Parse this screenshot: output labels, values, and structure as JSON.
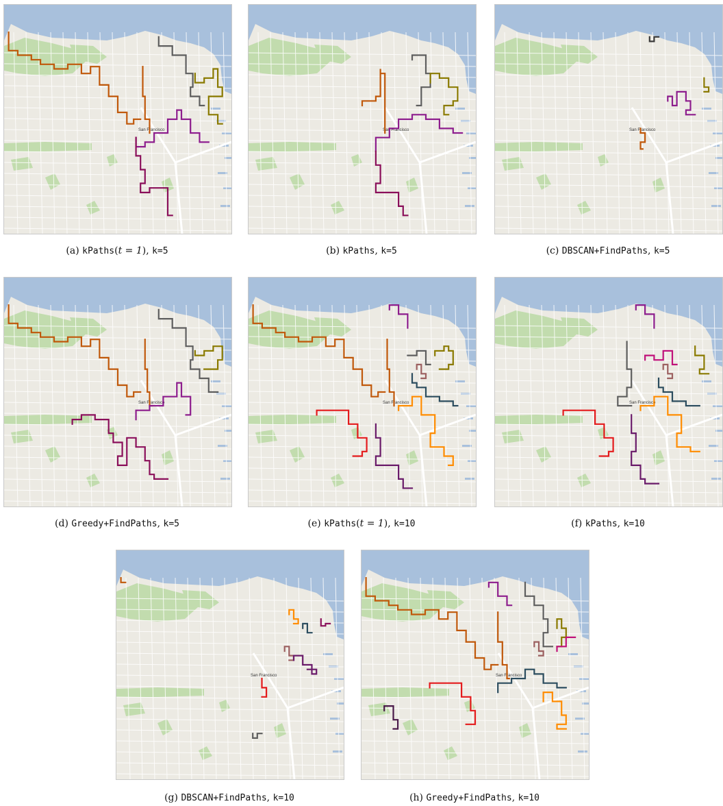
{
  "figure": {
    "panels": [
      {
        "id": "a",
        "label": "(a)",
        "method": "kPaths",
        "param": "t = 1",
        "k_text": "k=5",
        "colors": [
          "#c0580a",
          "#c0580a",
          "#5e5e5e",
          "#8a7a00",
          "#8d1d8d",
          "#8a0f5a"
        ]
      },
      {
        "id": "b",
        "label": "(b)",
        "method": "kPaths",
        "param": "",
        "k_text": "k=5",
        "colors": [
          "#c0580a",
          "#5e5e5e",
          "#8a7a00",
          "#8d1d8d",
          "#8a0f5a"
        ]
      },
      {
        "id": "c",
        "label": "(c)",
        "method": "DBSCAN+FindPaths",
        "param": "",
        "k_text": "k=5",
        "colors": [
          "#8d1d8d",
          "#8a7a00",
          "#c0580a",
          "#3a3a3a"
        ]
      },
      {
        "id": "d",
        "label": "(d)",
        "method": "Greedy+FindPaths",
        "param": "",
        "k_text": "k=5",
        "colors": [
          "#c0580a",
          "#c0580a",
          "#5e5e5e",
          "#8a7a00",
          "#8d1d8d",
          "#8a0f5a"
        ]
      },
      {
        "id": "e",
        "label": "(e)",
        "method": "kPaths",
        "param": "t = 1",
        "k_text": "k=10",
        "colors": [
          "#c0580a",
          "#c0580a",
          "#8d1d8d",
          "#5e5e5e",
          "#8a7a00",
          "#2b4c5e",
          "#e41a1c",
          "#6a1b6a",
          "#ff8c00",
          "#9c6060"
        ]
      },
      {
        "id": "f",
        "label": "(f)",
        "method": "kPaths",
        "param": "",
        "k_text": "k=10",
        "colors": [
          "#8d1d8d",
          "#5e5e5e",
          "#c0117a",
          "#8a7a00",
          "#2b4c5e",
          "#e41a1c",
          "#6a1b6a",
          "#ff8c00",
          "#9c6060"
        ]
      },
      {
        "id": "g",
        "label": "(g)",
        "method": "DBSCAN+FindPaths",
        "param": "",
        "k_text": "k=10",
        "colors": [
          "#ff8c00",
          "#2b4c5e",
          "#8a0f5a",
          "#9c6060",
          "#6a1b6a",
          "#e41a1c",
          "#5e5e5e",
          "#c0580a"
        ]
      },
      {
        "id": "h",
        "label": "(h)",
        "method": "Greedy+FindPaths",
        "param": "",
        "k_text": "k=10",
        "colors": [
          "#c0580a",
          "#c0580a",
          "#8d1d8d",
          "#5e5e5e",
          "#8a7a00",
          "#c0117a",
          "#9c6060",
          "#2b4c5e",
          "#e41a1c",
          "#ff8c00",
          "#4a1a4a"
        ]
      }
    ],
    "map_colors": {
      "water": "#a8c0dc",
      "land": "#eceae3",
      "park": "#c2dcae",
      "road": "#ffffff",
      "highway": "#ffffff"
    },
    "map_label": "San Francisco"
  }
}
